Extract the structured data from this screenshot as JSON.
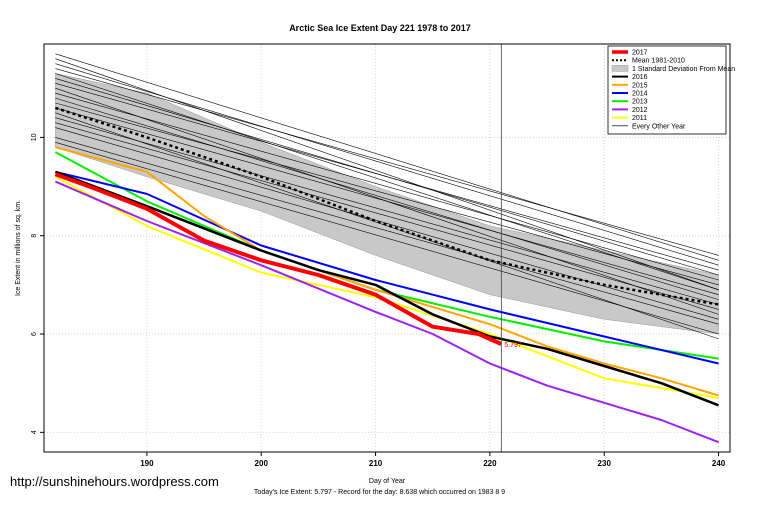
{
  "chart_data": {
    "type": "line",
    "title": "Arctic Sea Ice Extent Day 221 1978 to 2017",
    "xlabel": "Day of Year",
    "ylabel": "Ice Extent in millions of sq. km.",
    "xlim": [
      181,
      241
    ],
    "ylim": [
      3.6,
      11.9
    ],
    "x_ticks": [
      190,
      200,
      210,
      220,
      230,
      240
    ],
    "y_ticks": [
      4,
      6,
      8,
      10
    ],
    "grid": true,
    "marker_day": 221,
    "marker_value_label": "5.797",
    "legend_position": "top-right",
    "legend": [
      {
        "label": "2017",
        "color": "#ff0000",
        "style": "thick"
      },
      {
        "label": "Mean 1981-2010",
        "color": "#000000",
        "style": "dotted"
      },
      {
        "label": "1 Standard Deviation From Mean",
        "color": "#c8c8c8",
        "style": "band"
      },
      {
        "label": "2016",
        "color": "#000000",
        "style": "line"
      },
      {
        "label": "2015",
        "color": "#ffa500",
        "style": "line"
      },
      {
        "label": "2014",
        "color": "#0000ff",
        "style": "line"
      },
      {
        "label": "2013",
        "color": "#00ee00",
        "style": "line"
      },
      {
        "label": "2012",
        "color": "#a020f0",
        "style": "line"
      },
      {
        "label": "2011",
        "color": "#ffff00",
        "style": "line"
      },
      {
        "label": "Every Other Year",
        "color": "#000000",
        "style": "thin"
      }
    ],
    "x": [
      182,
      185,
      190,
      195,
      200,
      205,
      210,
      215,
      220,
      221,
      225,
      230,
      235,
      240
    ],
    "mean": {
      "x": [
        182,
        190,
        200,
        210,
        220,
        230,
        240
      ],
      "values": [
        10.6,
        10.0,
        9.2,
        8.3,
        7.5,
        7.0,
        6.6
      ]
    },
    "sd_band": {
      "x": [
        182,
        190,
        200,
        210,
        220,
        230,
        240
      ],
      "upper": [
        11.3,
        10.9,
        9.9,
        9.0,
        8.2,
        7.7,
        7.2
      ],
      "lower": [
        9.8,
        9.2,
        8.5,
        7.6,
        6.8,
        6.3,
        6.0
      ]
    },
    "series": [
      {
        "name": "2017",
        "color": "#ff0000",
        "width": 4,
        "x": [
          182,
          185,
          190,
          195,
          200,
          205,
          210,
          215,
          219,
          221
        ],
        "values": [
          9.25,
          9.0,
          8.55,
          7.9,
          7.5,
          7.2,
          6.8,
          6.15,
          6.0,
          5.797
        ]
      },
      {
        "name": "2016",
        "color": "#000000",
        "width": 2.5,
        "x": [
          182,
          190,
          200,
          205,
          210,
          215,
          220,
          225,
          230,
          235,
          240
        ],
        "values": [
          9.3,
          8.6,
          7.7,
          7.3,
          7.0,
          6.4,
          5.95,
          5.7,
          5.35,
          5.0,
          4.55
        ]
      },
      {
        "name": "2015",
        "color": "#ffa500",
        "width": 2,
        "x": [
          182,
          190,
          195,
          200,
          210,
          220,
          225,
          230,
          235,
          240
        ],
        "values": [
          9.8,
          9.3,
          8.4,
          7.7,
          6.9,
          6.2,
          5.75,
          5.4,
          5.1,
          4.75
        ]
      },
      {
        "name": "2014",
        "color": "#0000ff",
        "width": 2,
        "x": [
          182,
          190,
          200,
          210,
          220,
          230,
          240
        ],
        "values": [
          9.3,
          8.85,
          7.8,
          7.1,
          6.5,
          5.95,
          5.4
        ]
      },
      {
        "name": "2013",
        "color": "#00ee00",
        "width": 2,
        "x": [
          182,
          190,
          200,
          210,
          220,
          230,
          240
        ],
        "values": [
          9.7,
          8.7,
          7.7,
          6.9,
          6.35,
          5.85,
          5.5
        ]
      },
      {
        "name": "2012",
        "color": "#a020f0",
        "width": 2,
        "x": [
          182,
          190,
          200,
          210,
          215,
          220,
          225,
          230,
          235,
          240
        ],
        "values": [
          9.1,
          8.3,
          7.4,
          6.45,
          6.0,
          5.4,
          4.95,
          4.6,
          4.25,
          3.8
        ]
      },
      {
        "name": "2011",
        "color": "#ffff00",
        "width": 2,
        "x": [
          182,
          190,
          200,
          210,
          220,
          230,
          240
        ],
        "values": [
          9.2,
          8.2,
          7.25,
          6.75,
          6.0,
          5.1,
          4.7
        ]
      }
    ],
    "other_years": [
      {
        "x": [
          182,
          240
        ],
        "values": [
          11.5,
          7.4
        ]
      },
      {
        "x": [
          182,
          240
        ],
        "values": [
          11.4,
          7.6
        ]
      },
      {
        "x": [
          182,
          240
        ],
        "values": [
          11.1,
          7.3
        ]
      },
      {
        "x": [
          182,
          240
        ],
        "values": [
          10.9,
          7.1
        ]
      },
      {
        "x": [
          182,
          240
        ],
        "values": [
          11.6,
          6.9
        ]
      },
      {
        "x": [
          182,
          240
        ],
        "values": [
          10.6,
          6.8
        ]
      },
      {
        "x": [
          182,
          240
        ],
        "values": [
          10.4,
          6.6
        ]
      },
      {
        "x": [
          182,
          240
        ],
        "values": [
          11.0,
          6.4
        ]
      },
      {
        "x": [
          182,
          240
        ],
        "values": [
          10.2,
          6.3
        ]
      },
      {
        "x": [
          182,
          240
        ],
        "values": [
          9.9,
          6.0
        ]
      },
      {
        "x": [
          182,
          240
        ],
        "values": [
          11.3,
          6.9
        ]
      },
      {
        "x": [
          182,
          240
        ],
        "values": [
          10.7,
          7.0
        ]
      },
      {
        "x": [
          182,
          240
        ],
        "values": [
          10.0,
          6.2
        ]
      },
      {
        "x": [
          182,
          240
        ],
        "values": [
          11.7,
          7.5
        ]
      },
      {
        "x": [
          182,
          240
        ],
        "values": [
          10.8,
          6.7
        ]
      },
      {
        "x": [
          182,
          240
        ],
        "values": [
          10.3,
          6.5
        ]
      },
      {
        "x": [
          182,
          240
        ],
        "values": [
          10.5,
          5.9
        ]
      },
      {
        "x": [
          182,
          240
        ],
        "values": [
          11.2,
          7.2
        ]
      }
    ]
  },
  "watermark": "http://sunshinehours.wordpress.com",
  "footer": "Today's Ice Extent: 5.797  - Record for the day: 8.638 which occurred on 1983 8 9"
}
